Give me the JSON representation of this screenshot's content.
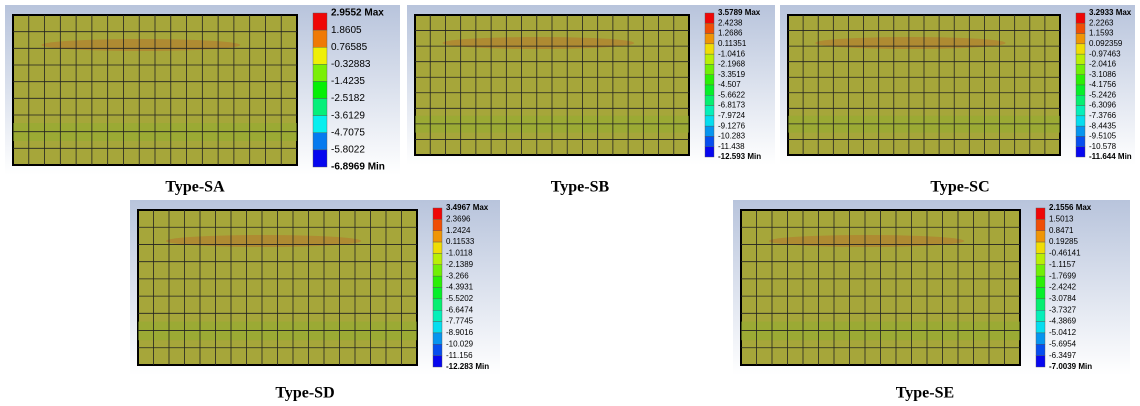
{
  "panels": [
    {
      "caption": "Type-SA",
      "legend": [
        "2.9552 Max",
        "1.8605",
        "0.76585",
        "-0.32883",
        "-1.4235",
        "-2.5182",
        "-3.6129",
        "-4.7075",
        "-5.8022",
        "-6.8969 Min"
      ]
    },
    {
      "caption": "Type-SB",
      "legend": [
        "3.5789 Max",
        "2.4238",
        "1.2686",
        "0.11351",
        "-1.0416",
        "-2.1968",
        "-3.3519",
        "-4.507",
        "-5.6622",
        "-6.8173",
        "-7.9724",
        "-9.1276",
        "-10.283",
        "-11.438",
        "-12.593 Min"
      ]
    },
    {
      "caption": "Type-SC",
      "legend": [
        "3.2933 Max",
        "2.2263",
        "1.1593",
        "0.092359",
        "-0.97463",
        "-2.0416",
        "-3.1086",
        "-4.1756",
        "-5.2426",
        "-6.3096",
        "-7.3766",
        "-8.4435",
        "-9.5105",
        "-10.578",
        "-11.644 Min"
      ]
    },
    {
      "caption": "Type-SD",
      "legend": [
        "3.4967 Max",
        "2.3696",
        "1.2424",
        "0.11533",
        "-1.0118",
        "-2.1389",
        "-3.266",
        "-4.3931",
        "-5.5202",
        "-6.6474",
        "-7.7745",
        "-8.9016",
        "-10.029",
        "-11.156",
        "-12.283 Min"
      ]
    },
    {
      "caption": "Type-SE",
      "legend": [
        "2.1556 Max",
        "1.5013",
        "0.8471",
        "0.19285",
        "-0.46141",
        "-1.1157",
        "-1.7699",
        "-2.4242",
        "-3.0784",
        "-3.7327",
        "-4.3869",
        "-5.0412",
        "-5.6954",
        "-6.3497",
        "-7.0039 Min"
      ]
    }
  ]
}
